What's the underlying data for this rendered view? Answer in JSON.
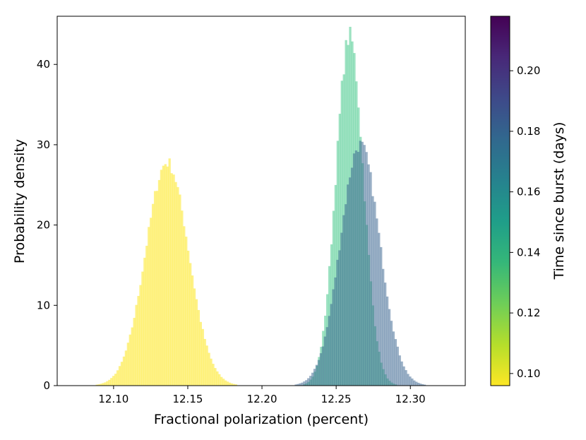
{
  "chart_data": {
    "type": "histogram",
    "title": "",
    "xlabel": "Fractional polarization (percent)",
    "ylabel": "Probability density",
    "xlim": [
      12.062,
      12.337
    ],
    "ylim": [
      0,
      46
    ],
    "xticks": [
      12.1,
      12.15,
      12.2,
      12.25,
      12.3
    ],
    "yticks": [
      0,
      10,
      20,
      30,
      40
    ],
    "grid": false,
    "legend": "none",
    "series": [
      {
        "mean": 12.136,
        "sd": 0.0144,
        "peak": 27.8,
        "color": "#fde725",
        "opacity": 0.55,
        "time_days": 0.096
      },
      {
        "mean": 12.259,
        "sd": 0.0092,
        "peak": 43.5,
        "color": "#3ac583",
        "opacity": 0.5,
        "time_days": 0.125
      },
      {
        "mean": 12.266,
        "sd": 0.0132,
        "peak": 30.0,
        "color": "#36618d",
        "opacity": 0.5,
        "time_days": 0.198
      }
    ],
    "colorbar": {
      "label": "Time since burst (days)",
      "range": [
        0.096,
        0.218
      ],
      "ticks": [
        0.1,
        0.12,
        0.14,
        0.16,
        0.18,
        0.2
      ],
      "colormap": "viridis_r",
      "stops": [
        "#fde725",
        "#b5de2b",
        "#6ece58",
        "#35b779",
        "#1f9e89",
        "#26828e",
        "#31688e",
        "#3e4989",
        "#482878",
        "#440154"
      ]
    }
  }
}
